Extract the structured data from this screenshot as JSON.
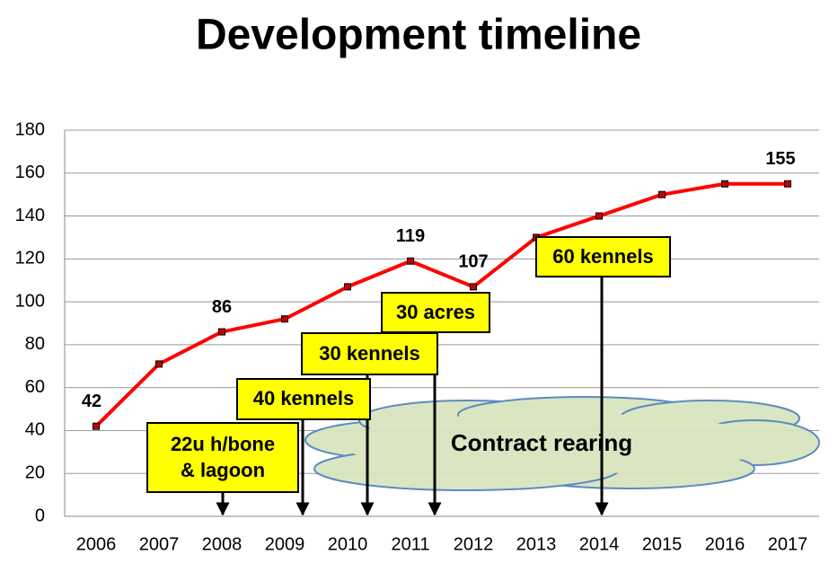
{
  "chart_data": {
    "type": "line",
    "title": "Development timeline",
    "categories": [
      "2006",
      "2007",
      "2008",
      "2009",
      "2010",
      "2011",
      "2012",
      "2013",
      "2014",
      "2015",
      "2016",
      "2017"
    ],
    "series": [
      {
        "name": "Development",
        "color": "#ff0000",
        "values": [
          42,
          71,
          86,
          92,
          107,
          119,
          107,
          130,
          140,
          150,
          155,
          155
        ],
        "value_labels": [
          "42",
          null,
          "86",
          null,
          null,
          "119",
          "107",
          null,
          null,
          null,
          null,
          "155"
        ]
      }
    ],
    "ylim": [
      0,
      180
    ],
    "yticks": [
      0,
      20,
      40,
      60,
      80,
      100,
      120,
      140,
      160,
      180
    ],
    "grid": true,
    "annotations": [
      {
        "text": "22u h/bone & lagoon"
      },
      {
        "text": "40 kennels"
      },
      {
        "text": "30 kennels"
      },
      {
        "text": "30 acres"
      },
      {
        "text": "60 kennels"
      }
    ],
    "region_label": "Contract rearing"
  }
}
